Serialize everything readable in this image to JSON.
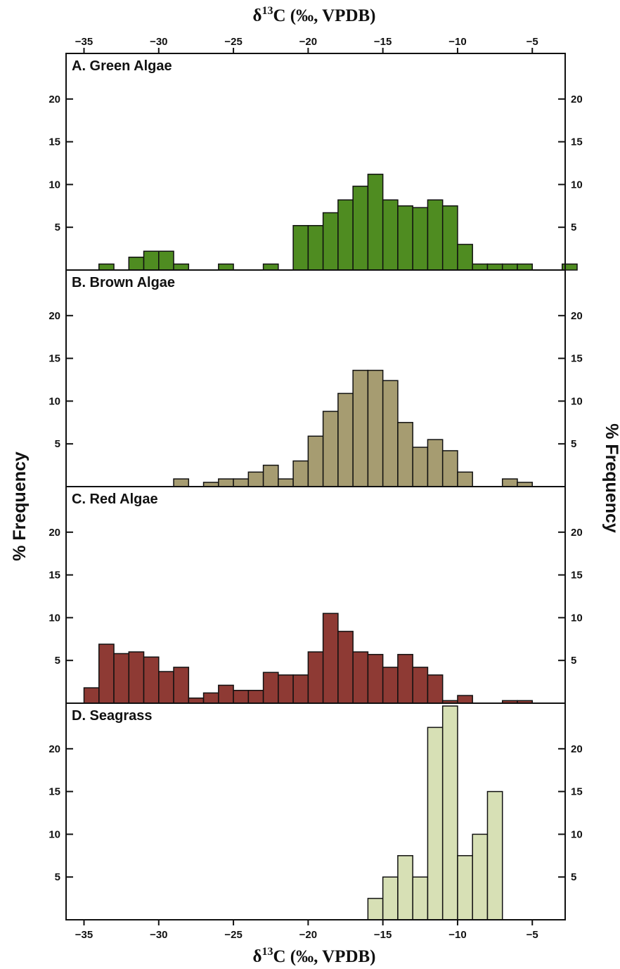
{
  "chart_data": {
    "type": "bar",
    "x_axis": {
      "label_prefix": "δ",
      "label_superscript": "13",
      "label_suffix": "C (‰, VPDB)",
      "range": [
        -36.2,
        -2.8
      ],
      "ticks": [
        -35,
        -30,
        -25,
        -20,
        -15,
        -10,
        -5
      ],
      "tick_labels": [
        "−35",
        "−30",
        "−25",
        "−20",
        "−15",
        "−10",
        "−5"
      ],
      "positions": [
        "top",
        "bottom"
      ]
    },
    "y_axis": {
      "label": "% Frequency",
      "range": [
        0,
        25
      ],
      "ticks": [
        5,
        10,
        15,
        20
      ],
      "tick_labels": [
        "5",
        "10",
        "15",
        "20"
      ],
      "sides": [
        "left",
        "right"
      ]
    },
    "bin_width": 1,
    "panels": [
      {
        "label": "A. Green Algae",
        "color": "#4f8c21",
        "bins_left": [
          -34,
          -32,
          -31,
          -30,
          -29,
          -26,
          -23,
          -21,
          -20,
          -19,
          -18,
          -17,
          -16,
          -15,
          -14,
          -13,
          -12,
          -11,
          -10,
          -9,
          -8,
          -7,
          -6,
          -3
        ],
        "values": [
          0.7,
          1.5,
          2.2,
          2.2,
          0.7,
          0.7,
          0.7,
          5.2,
          5.2,
          6.7,
          8.2,
          9.8,
          11.2,
          8.2,
          7.5,
          7.3,
          8.2,
          7.5,
          3.0,
          0.7,
          0.7,
          0.7,
          0.7,
          0.7
        ]
      },
      {
        "label": "B. Brown Algae",
        "color": "#a69c71",
        "bins_left": [
          -29,
          -27,
          -26,
          -25,
          -24,
          -23,
          -22,
          -21,
          -20,
          -19,
          -18,
          -17,
          -16,
          -15,
          -14,
          -13,
          -12,
          -11,
          -10,
          -7,
          -6
        ],
        "values": [
          0.9,
          0.5,
          0.9,
          0.9,
          1.7,
          2.5,
          0.9,
          3.0,
          5.9,
          8.8,
          10.9,
          13.6,
          13.6,
          12.4,
          7.5,
          4.6,
          5.5,
          4.2,
          1.7,
          0.9,
          0.5
        ]
      },
      {
        "label": "C. Red Algae",
        "color": "#8e3a34",
        "bins_left": [
          -35,
          -34,
          -33,
          -32,
          -31,
          -30,
          -29,
          -28,
          -27,
          -26,
          -25,
          -24,
          -23,
          -22,
          -21,
          -20,
          -19,
          -18,
          -17,
          -16,
          -15,
          -14,
          -13,
          -12,
          -11,
          -10,
          -7,
          -6
        ],
        "values": [
          1.8,
          6.9,
          5.8,
          6.0,
          5.4,
          3.7,
          4.2,
          0.6,
          1.2,
          2.1,
          1.5,
          1.5,
          3.6,
          3.3,
          3.3,
          6.0,
          10.5,
          8.4,
          6.0,
          5.7,
          4.2,
          5.7,
          4.2,
          3.3,
          0.3,
          0.9,
          0.3,
          0.3
        ]
      },
      {
        "label": "D. Seagrass",
        "color": "#d7e0b5",
        "bins_left": [
          -16,
          -15,
          -14,
          -13,
          -12,
          -11,
          -10,
          -9,
          -8
        ],
        "values": [
          2.5,
          5.0,
          7.5,
          5.0,
          22.5,
          25.0,
          7.5,
          10.0,
          15.0
        ]
      }
    ]
  }
}
